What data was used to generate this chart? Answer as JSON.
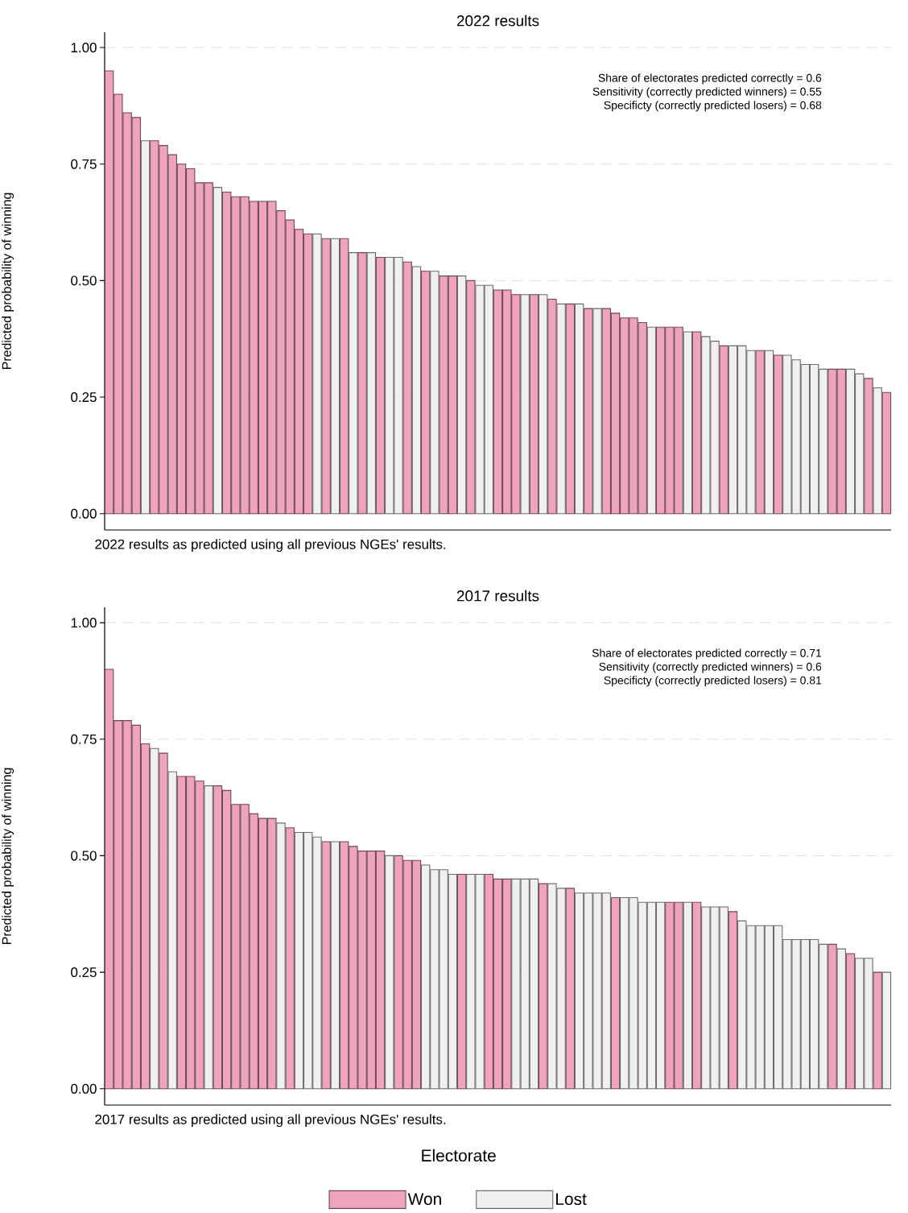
{
  "chart_data": [
    {
      "type": "bar",
      "title": "2022 results",
      "ylabel": "Predicted probability of winning",
      "annotations": [
        "Share of electorates predicted correctly = 0.6",
        "Sensitivity (correctly predicted winners) = 0.55",
        "Specificty (correctly predicted losers) = 0.68",
        "2022 results as predicted using all previous NGEs' results."
      ],
      "categories": [
        null,
        null,
        null,
        null,
        null,
        null,
        null,
        null,
        null,
        null,
        null,
        null,
        null,
        null,
        null,
        null,
        null,
        null,
        null,
        null,
        null,
        null,
        null,
        null,
        null,
        null,
        null,
        null,
        null,
        null,
        null,
        null,
        null,
        null,
        null,
        null,
        null,
        null,
        null,
        null,
        null,
        null,
        null,
        null,
        null,
        null,
        null,
        null,
        null,
        null,
        null,
        null,
        null,
        null,
        null,
        null,
        null,
        null,
        null,
        null,
        null,
        null,
        null,
        null,
        null,
        null,
        null,
        null,
        null,
        null,
        null,
        null,
        null,
        null,
        null,
        null,
        null,
        null,
        null,
        null,
        null,
        null,
        null,
        null,
        null,
        null,
        null
      ],
      "series": [
        {
          "color": "#f0a3be",
          "values": [
            0.95,
            0.9,
            0.86,
            0.85,
            null,
            0.8,
            0.79,
            0.77,
            0.75,
            0.74,
            0.71,
            0.71,
            null,
            0.69,
            0.68,
            0.68,
            0.67,
            0.67,
            0.67,
            0.65,
            0.63,
            0.61,
            0.6,
            null,
            0.59,
            null,
            0.59,
            null,
            0.56,
            null,
            0.55,
            null,
            null,
            0.54,
            null,
            0.52,
            null,
            0.51,
            0.51,
            null,
            0.5,
            null,
            null,
            0.48,
            0.48,
            0.47,
            null,
            0.47,
            null,
            0.46,
            null,
            0.45,
            null,
            0.44,
            null,
            0.44,
            0.43,
            0.42,
            0.42,
            0.41,
            null,
            0.4,
            0.4,
            0.4,
            null,
            0.39,
            null,
            null,
            0.36,
            null,
            null,
            null,
            0.35,
            null,
            0.34,
            null,
            null,
            null,
            null,
            null,
            0.31,
            0.31,
            null,
            null,
            0.29,
            null,
            0.26
          ]
        },
        {
          "color": "#f0f0f0",
          "values": [
            null,
            null,
            null,
            null,
            0.8,
            null,
            null,
            null,
            null,
            null,
            null,
            null,
            0.7,
            null,
            null,
            null,
            null,
            null,
            null,
            null,
            null,
            null,
            null,
            0.6,
            null,
            0.59,
            null,
            0.56,
            null,
            0.56,
            null,
            0.55,
            0.55,
            null,
            0.53,
            null,
            0.52,
            null,
            null,
            0.51,
            null,
            0.49,
            0.49,
            null,
            null,
            null,
            0.47,
            null,
            0.47,
            null,
            0.45,
            null,
            0.45,
            null,
            0.44,
            null,
            null,
            null,
            null,
            null,
            0.4,
            null,
            null,
            null,
            0.39,
            null,
            0.38,
            0.37,
            null,
            0.36,
            0.36,
            0.35,
            null,
            0.35,
            null,
            0.34,
            0.33,
            0.32,
            0.32,
            0.31,
            null,
            null,
            0.31,
            0.3,
            null,
            0.27,
            null
          ]
        }
      ],
      "ylim": [
        -0.035,
        1.033
      ],
      "yticks": [
        {
          "value": 0,
          "label": "0.00"
        },
        {
          "value": 0.25,
          "label": "0.25"
        },
        {
          "value": 0.5,
          "label": "0.50"
        },
        {
          "value": 0.75,
          "label": "0.75"
        },
        {
          "value": 1,
          "label": "1.00"
        }
      ],
      "grid": "y",
      "tick_labels": "y"
    },
    {
      "type": "bar",
      "title": "2017 results",
      "ylabel": "Predicted probability of winning",
      "xlabel": "Electorate",
      "annotations": [
        "Share of electorates predicted correctly = 0.71",
        "Sensitivity (correctly predicted winners) = 0.6",
        "Specificty (correctly predicted losers) = 0.81",
        "2017 results as predicted using all previous NGEs' results."
      ],
      "categories": [
        null,
        null,
        null,
        null,
        null,
        null,
        null,
        null,
        null,
        null,
        null,
        null,
        null,
        null,
        null,
        null,
        null,
        null,
        null,
        null,
        null,
        null,
        null,
        null,
        null,
        null,
        null,
        null,
        null,
        null,
        null,
        null,
        null,
        null,
        null,
        null,
        null,
        null,
        null,
        null,
        null,
        null,
        null,
        null,
        null,
        null,
        null,
        null,
        null,
        null,
        null,
        null,
        null,
        null,
        null,
        null,
        null,
        null,
        null,
        null,
        null,
        null,
        null,
        null,
        null,
        null,
        null,
        null,
        null,
        null,
        null,
        null,
        null,
        null,
        null,
        null,
        null,
        null,
        null,
        null,
        null,
        null,
        null,
        null,
        null,
        null,
        null
      ],
      "series": [
        {
          "name": "Won",
          "color": "#f0a3be",
          "values": [
            0.9,
            0.79,
            0.79,
            0.78,
            0.74,
            null,
            0.72,
            null,
            0.67,
            0.67,
            0.66,
            null,
            0.65,
            0.64,
            0.61,
            0.61,
            0.59,
            0.58,
            0.58,
            null,
            0.56,
            null,
            null,
            null,
            0.53,
            null,
            0.53,
            0.52,
            0.51,
            0.51,
            0.51,
            null,
            0.5,
            0.49,
            0.49,
            null,
            null,
            null,
            null,
            0.46,
            null,
            null,
            0.46,
            0.45,
            0.45,
            null,
            null,
            null,
            0.44,
            null,
            null,
            0.43,
            null,
            null,
            null,
            null,
            0.41,
            null,
            null,
            null,
            null,
            null,
            0.4,
            0.4,
            null,
            0.4,
            null,
            null,
            null,
            0.38,
            null,
            null,
            null,
            null,
            null,
            null,
            null,
            null,
            null,
            null,
            0.31,
            null,
            0.29,
            null,
            null,
            0.25,
            null
          ]
        },
        {
          "name": "Lost",
          "color": "#f0f0f0",
          "values": [
            null,
            null,
            null,
            null,
            null,
            0.73,
            null,
            0.68,
            null,
            null,
            null,
            0.65,
            null,
            null,
            null,
            null,
            null,
            null,
            null,
            0.57,
            null,
            0.55,
            0.55,
            0.54,
            null,
            0.53,
            null,
            null,
            null,
            null,
            null,
            0.5,
            null,
            null,
            null,
            0.48,
            0.47,
            0.47,
            0.46,
            null,
            0.46,
            0.46,
            null,
            null,
            null,
            0.45,
            0.45,
            0.45,
            null,
            0.44,
            0.43,
            null,
            0.42,
            0.42,
            0.42,
            0.42,
            null,
            0.41,
            0.41,
            0.4,
            0.4,
            0.4,
            null,
            null,
            0.4,
            null,
            0.39,
            0.39,
            0.39,
            null,
            0.36,
            0.35,
            0.35,
            0.35,
            0.35,
            0.32,
            0.32,
            0.32,
            0.32,
            0.31,
            null,
            0.3,
            null,
            0.28,
            0.28,
            null,
            0.25
          ]
        }
      ],
      "ylim": [
        -0.035,
        1.033
      ],
      "yticks": [
        {
          "value": 0,
          "label": "0.00"
        },
        {
          "value": 0.25,
          "label": "0.25"
        },
        {
          "value": 0.5,
          "label": "0.50"
        },
        {
          "value": 0.75,
          "label": "0.75"
        },
        {
          "value": 1,
          "label": "1.00"
        }
      ],
      "grid": "y",
      "tick_labels": "y",
      "legend": "bottom"
    }
  ]
}
